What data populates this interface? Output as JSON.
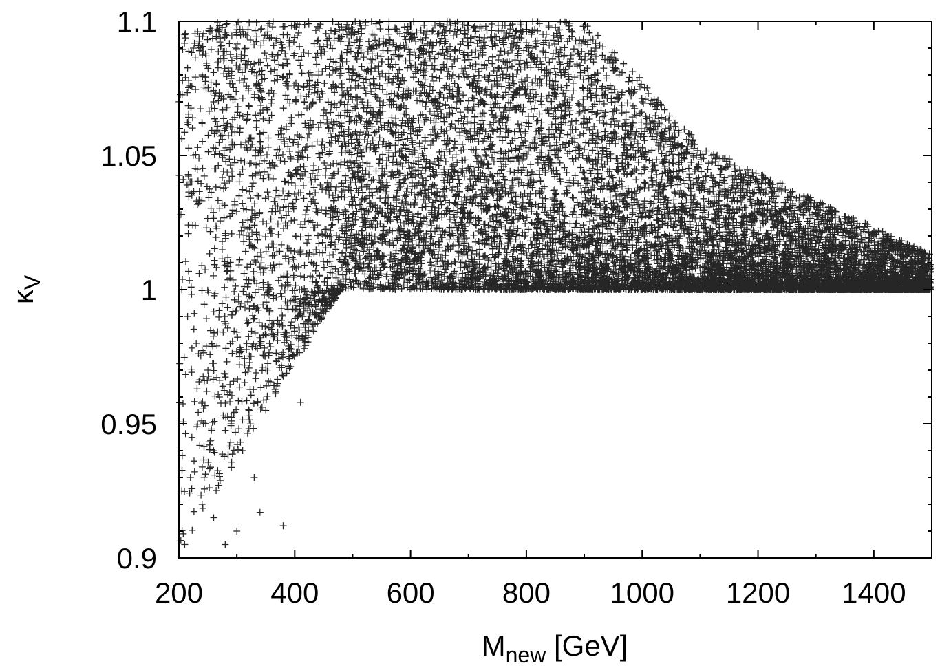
{
  "chart_data": {
    "type": "scatter",
    "title": "",
    "xlabel": {
      "main": "M",
      "sub": "new",
      "unit": " [GeV]"
    },
    "ylabel": {
      "main": "κ",
      "sub": "V"
    },
    "xlim": [
      200,
      1500
    ],
    "ylim": [
      0.9,
      1.1
    ],
    "x_ticks": [
      200,
      400,
      600,
      800,
      1000,
      1200,
      1400
    ],
    "x_tick_labels": [
      "200",
      "400",
      "600",
      "800",
      "1000",
      "1200",
      "1400"
    ],
    "y_ticks": [
      0.9,
      0.95,
      1.0,
      1.05,
      1.1
    ],
    "y_tick_labels": [
      "0.9",
      "0.95",
      "1",
      "1.05",
      "1.1"
    ],
    "marker": "+",
    "marker_color": "#000000",
    "grid": false,
    "legend": "none",
    "series": [
      {
        "points": [
          [
            210,
            1.095
          ],
          [
            225,
            1.09
          ],
          [
            240,
            1.08
          ],
          [
            260,
            1.07
          ],
          [
            280,
            1.06
          ],
          [
            300,
            1.095
          ],
          [
            320,
            1.085
          ],
          [
            340,
            1.075
          ],
          [
            360,
            1.065
          ],
          [
            380,
            1.095
          ],
          [
            400,
            1.088
          ],
          [
            420,
            1.072
          ],
          [
            440,
            1.098
          ],
          [
            460,
            1.08
          ],
          [
            480,
            1.062
          ],
          [
            510,
            1.09
          ],
          [
            540,
            1.075
          ],
          [
            570,
            1.058
          ],
          [
            600,
            1.095
          ],
          [
            640,
            1.082
          ],
          [
            680,
            1.07
          ],
          [
            720,
            1.098
          ],
          [
            760,
            1.085
          ],
          [
            800,
            1.092
          ],
          [
            840,
            1.078
          ],
          [
            880,
            1.096
          ],
          [
            920,
            1.09
          ],
          [
            960,
            1.08
          ],
          [
            1000,
            1.07
          ],
          [
            1040,
            1.06
          ],
          [
            1080,
            1.055
          ],
          [
            1120,
            1.05
          ],
          [
            1160,
            1.045
          ],
          [
            1200,
            1.038
          ],
          [
            1260,
            1.032
          ],
          [
            1320,
            1.026
          ],
          [
            1400,
            1.02
          ],
          [
            1480,
            1.015
          ],
          [
            205,
            1.0
          ],
          [
            215,
            0.99
          ],
          [
            230,
            0.98
          ],
          [
            250,
            0.97
          ],
          [
            270,
            0.96
          ],
          [
            290,
            0.95
          ],
          [
            310,
            0.94
          ],
          [
            330,
            0.93
          ],
          [
            350,
            0.955
          ],
          [
            370,
            0.965
          ],
          [
            390,
            0.975
          ],
          [
            410,
            0.958
          ],
          [
            430,
            0.985
          ],
          [
            450,
            0.992
          ],
          [
            470,
            0.997
          ],
          [
            220,
            0.93
          ],
          [
            240,
            0.92
          ],
          [
            260,
            0.915
          ],
          [
            280,
            0.905
          ],
          [
            300,
            0.91
          ],
          [
            340,
            0.917
          ],
          [
            380,
            0.912
          ],
          [
            205,
            0.925
          ],
          [
            210,
            0.905
          ]
        ]
      }
    ]
  }
}
